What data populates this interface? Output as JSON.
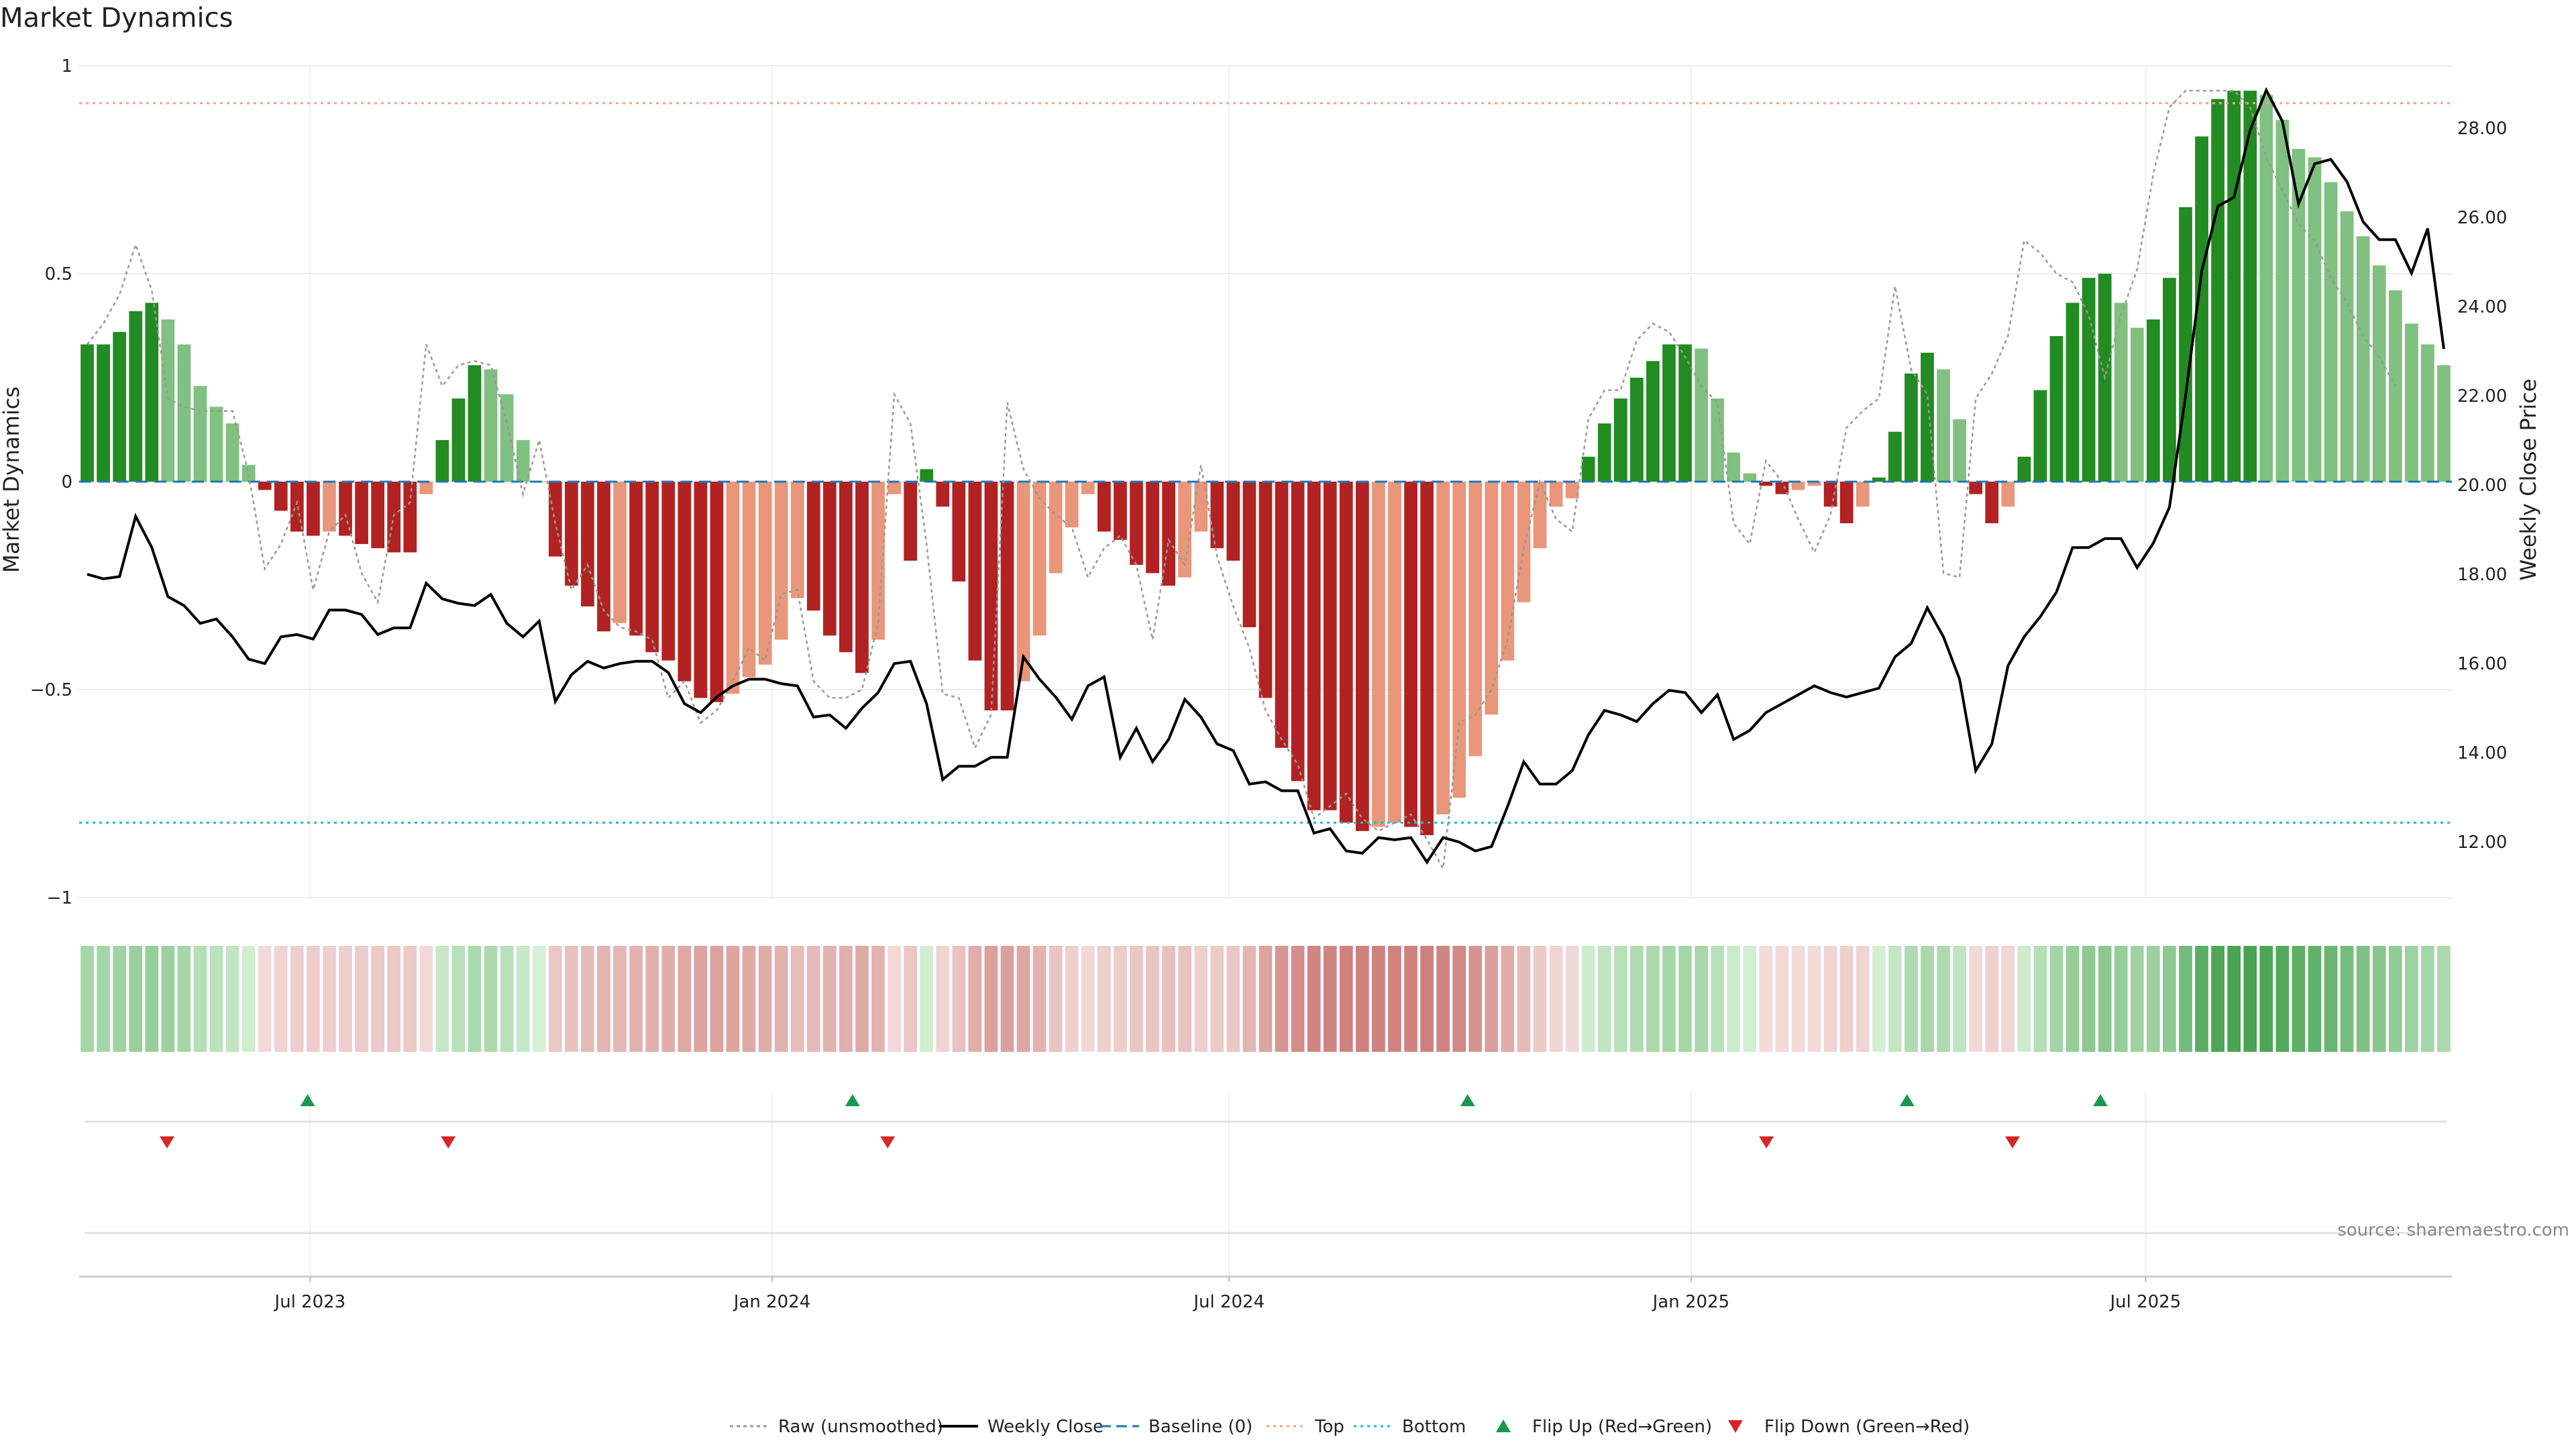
{
  "chart_data": {
    "type": "bar",
    "title": "Market Dynamics",
    "ylabel_left": "Market Dynamics",
    "ylabel_right": "Weekly Close Price",
    "ylim_left": [
      -1,
      1
    ],
    "ylim_right": [
      10.8,
      29.5
    ],
    "yticks_left": [
      1,
      0.5,
      0,
      -0.5,
      -1
    ],
    "ytick_labels_left": [
      "1",
      "0.5",
      "0",
      "−0.5",
      "−1"
    ],
    "yticks_right": [
      12,
      14,
      16,
      18,
      20,
      22,
      24,
      26,
      28
    ],
    "ytick_labels_right": [
      "12.00",
      "14.00",
      "16.00",
      "18.00",
      "20.00",
      "22.00",
      "24.00",
      "26.00",
      "28.00"
    ],
    "x_start": "2023-03-31",
    "x_end": "2025-10-31",
    "xtick_dates": [
      "2023-07-01",
      "2024-01-01",
      "2024-07-01",
      "2025-01-01",
      "2025-07-01"
    ],
    "xtick_labels": [
      "Jul 2023",
      "Jan 2024",
      "Jul 2024",
      "Jan 2025",
      "Jul 2025"
    ],
    "top_level": 0.91,
    "bottom_level": -0.82,
    "baseline": 0,
    "dynamics": [
      0.33,
      0.33,
      0.36,
      0.41,
      0.43,
      0.39,
      0.33,
      0.23,
      0.18,
      0.14,
      0.04,
      -0.02,
      -0.07,
      -0.12,
      -0.13,
      -0.12,
      -0.13,
      -0.15,
      -0.16,
      -0.17,
      -0.17,
      -0.03,
      0.1,
      0.2,
      0.28,
      0.27,
      0.21,
      0.1,
      0.0,
      -0.18,
      -0.25,
      -0.3,
      -0.36,
      -0.34,
      -0.37,
      -0.41,
      -0.43,
      -0.48,
      -0.52,
      -0.53,
      -0.51,
      -0.47,
      -0.44,
      -0.38,
      -0.28,
      -0.31,
      -0.37,
      -0.41,
      -0.46,
      -0.38,
      -0.03,
      -0.19,
      0.03,
      -0.06,
      -0.24,
      -0.43,
      -0.55,
      -0.55,
      -0.48,
      -0.37,
      -0.22,
      -0.11,
      -0.03,
      -0.12,
      -0.14,
      -0.2,
      -0.22,
      -0.25,
      -0.23,
      -0.12,
      -0.16,
      -0.19,
      -0.35,
      -0.52,
      -0.64,
      -0.72,
      -0.79,
      -0.79,
      -0.82,
      -0.84,
      -0.83,
      -0.82,
      -0.83,
      -0.85,
      -0.8,
      -0.76,
      -0.66,
      -0.56,
      -0.43,
      -0.29,
      -0.16,
      -0.06,
      -0.04,
      0.06,
      0.14,
      0.2,
      0.25,
      0.29,
      0.33,
      0.33,
      0.32,
      0.2,
      0.07,
      0.02,
      -0.01,
      -0.03,
      -0.02,
      -0.01,
      -0.06,
      -0.1,
      -0.06,
      0.01,
      0.12,
      0.26,
      0.31,
      0.27,
      0.15,
      -0.03,
      -0.1,
      -0.06,
      0.06,
      0.22,
      0.35,
      0.43,
      0.49,
      0.5,
      0.43,
      0.37,
      0.39,
      0.49,
      0.66,
      0.83,
      0.92,
      0.94,
      0.94,
      0.93,
      0.87,
      0.8,
      0.78,
      0.72,
      0.65,
      0.59,
      0.52,
      0.46,
      0.38,
      0.33,
      0.28
    ],
    "raw": [
      0.33,
      0.38,
      0.45,
      0.57,
      0.46,
      0.2,
      0.18,
      0.17,
      0.17,
      0.17,
      0.02,
      -0.21,
      -0.15,
      -0.05,
      -0.26,
      -0.12,
      -0.08,
      -0.22,
      -0.29,
      -0.08,
      -0.05,
      0.33,
      0.23,
      0.28,
      0.29,
      0.28,
      0.14,
      -0.03,
      0.1,
      -0.1,
      -0.26,
      -0.2,
      -0.31,
      -0.35,
      -0.36,
      -0.38,
      -0.52,
      -0.48,
      -0.58,
      -0.55,
      -0.48,
      -0.4,
      -0.43,
      -0.27,
      -0.26,
      -0.48,
      -0.52,
      -0.52,
      -0.5,
      -0.34,
      0.21,
      0.14,
      -0.15,
      -0.51,
      -0.52,
      -0.64,
      -0.56,
      0.19,
      0.03,
      -0.04,
      -0.08,
      -0.11,
      -0.23,
      -0.16,
      -0.13,
      -0.2,
      -0.38,
      -0.14,
      -0.2,
      0.04,
      -0.18,
      -0.3,
      -0.4,
      -0.55,
      -0.62,
      -0.68,
      -0.81,
      -0.78,
      -0.75,
      -0.81,
      -0.84,
      -0.82,
      -0.8,
      -0.86,
      -0.93,
      -0.58,
      -0.56,
      -0.5,
      -0.38,
      -0.16,
      0.0,
      -0.09,
      -0.12,
      0.15,
      0.22,
      0.22,
      0.34,
      0.38,
      0.36,
      0.3,
      0.23,
      0.19,
      -0.1,
      -0.15,
      0.05,
      0.0,
      -0.09,
      -0.17,
      -0.08,
      0.13,
      0.17,
      0.2,
      0.47,
      0.27,
      0.21,
      -0.22,
      -0.23,
      0.2,
      0.26,
      0.35,
      0.58,
      0.55,
      0.5,
      0.48,
      0.4,
      0.25,
      0.4,
      0.51,
      0.74,
      0.9,
      0.94,
      0.94,
      0.94,
      0.94,
      0.9,
      0.78,
      0.7,
      0.62,
      0.58,
      0.49,
      0.43,
      0.35,
      0.3,
      0.23
    ],
    "close": [
      18.0,
      17.9,
      17.95,
      19.3,
      18.6,
      17.5,
      17.3,
      16.9,
      17.0,
      16.6,
      16.1,
      16.0,
      16.6,
      16.65,
      16.55,
      17.2,
      17.2,
      17.1,
      16.65,
      16.8,
      16.8,
      17.8,
      17.45,
      17.35,
      17.3,
      17.55,
      16.9,
      16.6,
      16.95,
      15.15,
      15.75,
      16.05,
      15.9,
      16.0,
      16.05,
      16.05,
      15.8,
      15.1,
      14.9,
      15.25,
      15.5,
      15.65,
      15.65,
      15.55,
      15.5,
      14.8,
      14.85,
      14.55,
      15.0,
      15.35,
      16.0,
      16.05,
      15.1,
      13.4,
      13.7,
      13.7,
      13.9,
      13.9,
      16.15,
      15.65,
      15.25,
      14.75,
      15.5,
      15.7,
      13.9,
      14.55,
      13.8,
      14.3,
      15.2,
      14.8,
      14.2,
      14.05,
      13.3,
      13.35,
      13.15,
      13.15,
      12.2,
      12.3,
      11.8,
      11.75,
      12.1,
      12.05,
      12.1,
      11.55,
      12.1,
      12.0,
      11.8,
      11.9,
      12.8,
      13.8,
      13.3,
      13.3,
      13.6,
      14.4,
      14.95,
      14.85,
      14.7,
      15.1,
      15.4,
      15.35,
      14.9,
      15.3,
      14.3,
      14.5,
      14.9,
      15.1,
      15.3,
      15.5,
      15.35,
      15.25,
      15.35,
      15.45,
      16.15,
      16.45,
      17.25,
      16.6,
      15.65,
      13.6,
      14.2,
      15.95,
      16.6,
      17.05,
      17.6,
      18.6,
      18.6,
      18.8,
      18.8,
      18.15,
      18.7,
      19.5,
      22.0,
      24.8,
      26.25,
      26.45,
      27.95,
      28.85,
      28.15,
      26.3,
      27.2,
      27.3,
      26.8,
      25.9,
      25.5,
      25.5,
      24.75,
      25.75,
      23.05
    ],
    "flip_up_dates": [
      "2023-06-30",
      "2024-02-02",
      "2024-10-04",
      "2025-03-28",
      "2025-06-13"
    ],
    "flip_down_dates": [
      "2023-05-05",
      "2023-08-25",
      "2024-02-16",
      "2025-01-31",
      "2025-05-09"
    ],
    "legend": [
      {
        "label": "Raw (unsmoothed)",
        "style": "dotted-gray"
      },
      {
        "label": "Weekly Close",
        "style": "solid-black"
      },
      {
        "label": "Baseline (0)",
        "style": "dashed-blue"
      },
      {
        "label": "Top",
        "style": "dotted-orange"
      },
      {
        "label": "Bottom",
        "style": "dotted-cyan"
      },
      {
        "label": "Flip Up (Red→Green)",
        "style": "triangle-up-green"
      },
      {
        "label": "Flip Down (Green→Red)",
        "style": "triangle-down-red"
      }
    ],
    "legend_position": "bottom-center",
    "grid": true,
    "source": "source: sharemaestro.com",
    "colors": {
      "green_strong": "#228b22",
      "green_light": "#80c080",
      "red_strong": "#b22222",
      "red_light": "#e9967a",
      "close_line": "#000000",
      "raw_line": "#999999",
      "baseline": "#1f77b4",
      "top": "#f4a582",
      "bottom": "#17becf",
      "flip_up": "#1a9850",
      "flip_down": "#d62728"
    }
  }
}
